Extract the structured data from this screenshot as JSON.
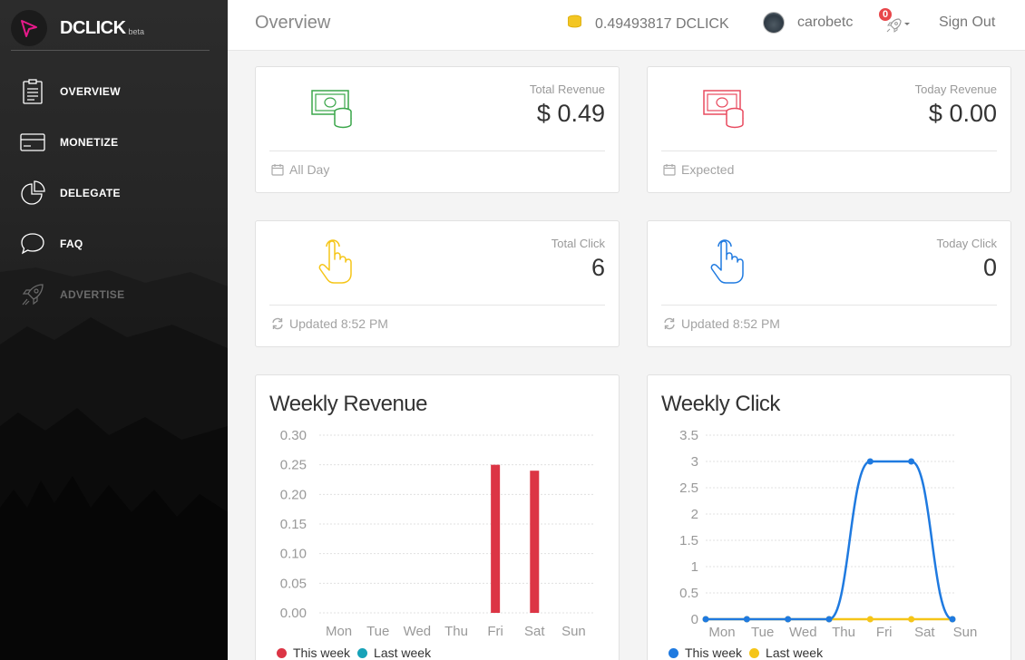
{
  "brand": {
    "name": "DCLICK",
    "sub": "beta",
    "accent": "#e8198b"
  },
  "sidebar": {
    "items": [
      {
        "label": "OVERVIEW",
        "icon": "clipboard-icon",
        "enabled": true
      },
      {
        "label": "MONETIZE",
        "icon": "credit-card-icon",
        "enabled": true
      },
      {
        "label": "DELEGATE",
        "icon": "pie-chart-icon",
        "enabled": true
      },
      {
        "label": "FAQ",
        "icon": "chat-bubble-icon",
        "enabled": true
      },
      {
        "label": "ADVERTISE",
        "icon": "rocket-icon",
        "enabled": false
      }
    ]
  },
  "header": {
    "title": "Overview",
    "balance": "0.49493817 DCLICK",
    "username": "carobetc",
    "notification_count": "0",
    "signout_label": "Sign Out"
  },
  "stats": [
    {
      "label": "Total Revenue",
      "value": "$ 0.49",
      "footer": "All Day",
      "icon": "money-stack-icon",
      "color": "#3aa64a",
      "footer_icon": "calendar-icon"
    },
    {
      "label": "Today Revenue",
      "value": "$ 0.00",
      "footer": "Expected",
      "icon": "money-stack-icon",
      "color": "#e84a5f",
      "footer_icon": "calendar-icon"
    },
    {
      "label": "Total Click",
      "value": "6",
      "footer": "Updated 8:52 PM",
      "icon": "tap-hand-icon",
      "color": "#f5c518",
      "footer_icon": "refresh-icon"
    },
    {
      "label": "Today Click",
      "value": "0",
      "footer": "Updated 8:52 PM",
      "icon": "tap-hand-icon",
      "color": "#1f7ae0",
      "footer_icon": "refresh-icon"
    }
  ],
  "chart_data": [
    {
      "type": "bar",
      "title": "Weekly Revenue",
      "categories": [
        "Mon",
        "Tue",
        "Wed",
        "Thu",
        "Fri",
        "Sat",
        "Sun"
      ],
      "ylim": [
        0,
        0.3
      ],
      "yticks": [
        "0.30",
        "0.25",
        "0.20",
        "0.15",
        "0.10",
        "0.05",
        "0.00"
      ],
      "ytick_values": [
        0.3,
        0.25,
        0.2,
        0.15,
        0.1,
        0.05,
        0
      ],
      "series": [
        {
          "name": "This week",
          "color": "#dc3545",
          "values": [
            0,
            0,
            0,
            0,
            0.25,
            0.24,
            0
          ]
        },
        {
          "name": "Last week",
          "color": "#17a2b8",
          "values": [
            0,
            0,
            0,
            0,
            0,
            0,
            0
          ]
        }
      ],
      "grid": true,
      "legend": "bottom-left"
    },
    {
      "type": "line",
      "title": "Weekly Click",
      "categories": [
        "Mon",
        "Tue",
        "Wed",
        "Thu",
        "Fri",
        "Sat",
        "Sun"
      ],
      "ylim": [
        0,
        3.5
      ],
      "yticks": [
        "3.5",
        "3",
        "2.5",
        "2",
        "1.5",
        "1",
        "0.5",
        "0"
      ],
      "ytick_values": [
        3.5,
        3,
        2.5,
        2,
        1.5,
        1,
        0.5,
        0
      ],
      "series": [
        {
          "name": "This week",
          "color": "#1f7ae0",
          "values": [
            0,
            0,
            0,
            0,
            3,
            3,
            0
          ]
        },
        {
          "name": "Last week",
          "color": "#f5c518",
          "values": [
            0,
            0,
            0,
            0,
            0,
            0,
            0
          ]
        }
      ],
      "grid": true,
      "legend": "bottom-left"
    }
  ]
}
